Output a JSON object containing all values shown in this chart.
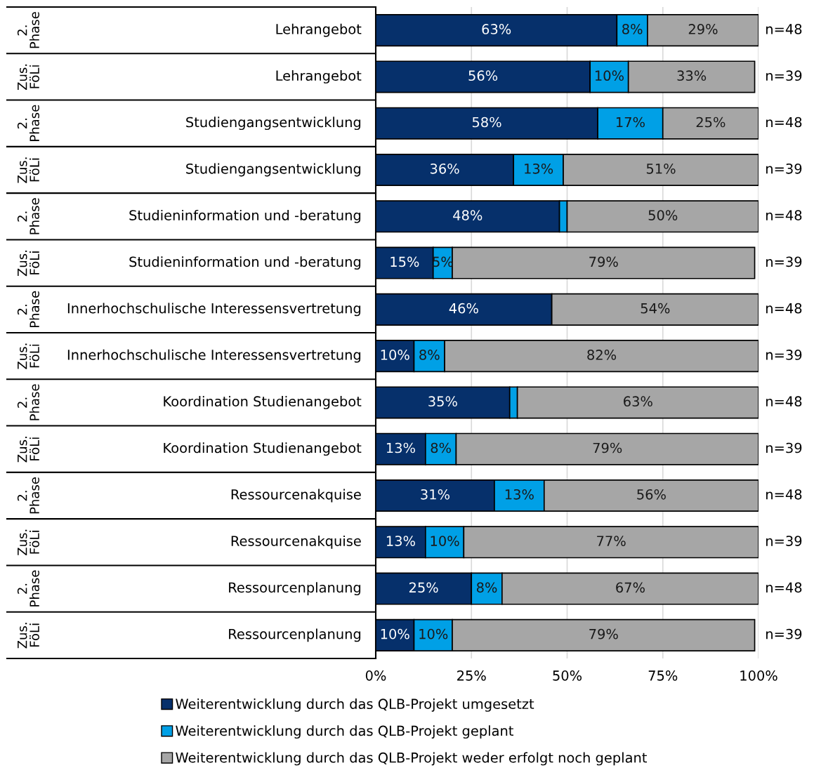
{
  "chart_data": {
    "type": "bar",
    "orientation": "horizontal",
    "stacked": true,
    "categories": [
      "Lehrangebot",
      "Lehrangebot",
      "Studiengangsentwicklung",
      "Studiengangsentwicklung",
      "Studieninformation und -beratung",
      "Studieninformation und -beratung",
      "Innerhochschulische Interessensvertretung",
      "Innerhochschulische Interessensvertretung",
      "Koordination Studienangebot",
      "Koordination Studienangebot",
      "Ressourcenakquise",
      "Ressourcenakquise",
      "Ressourcenplanung",
      "Ressourcenplanung"
    ],
    "series": [
      {
        "name": "Weiterentwicklung durch das QLB-Projekt umgesetzt",
        "color": "#06306b",
        "values": [
          63,
          56,
          58,
          36,
          48,
          15,
          46,
          10,
          35,
          13,
          31,
          13,
          25,
          10
        ],
        "value_labels": [
          "63%",
          "56%",
          "58%",
          "36%",
          "48%",
          "15%",
          "46%",
          "10%",
          "35%",
          "13%",
          "31%",
          "13%",
          "25%",
          "10%"
        ]
      },
      {
        "name": "Weiterentwicklung durch das QLB-Projekt geplant",
        "color": "#00a0e6",
        "values": [
          8,
          10,
          17,
          13,
          2,
          5,
          0,
          8,
          2,
          8,
          13,
          10,
          8,
          10
        ],
        "value_labels": [
          "8%",
          "10%",
          "17%",
          "13%",
          null,
          "5%",
          null,
          "8%",
          null,
          "8%",
          "13%",
          "10%",
          "8%",
          "10%"
        ]
      },
      {
        "name": "Weiterentwicklung durch das QLB-Projekt weder erfolgt noch geplant",
        "color": "#a6a6a6",
        "values": [
          29,
          33,
          25,
          51,
          50,
          79,
          54,
          82,
          63,
          79,
          56,
          77,
          67,
          79
        ],
        "value_labels": [
          "29%",
          "33%",
          "25%",
          "51%",
          "50%",
          "79%",
          "54%",
          "82%",
          "63%",
          "79%",
          "56%",
          "77%",
          "67%",
          "79%"
        ]
      }
    ],
    "xlim": [
      0,
      100
    ],
    "xticks": [
      {
        "value": 0,
        "label": "0%"
      },
      {
        "value": 25,
        "label": "25%"
      },
      {
        "value": 50,
        "label": "50%"
      },
      {
        "value": 75,
        "label": "75%"
      },
      {
        "value": 100,
        "label": "100%"
      }
    ],
    "grid": "x",
    "legend": "bottom",
    "annotations": [
      "2.\nPhase",
      "Zus.\nFöLi",
      "2.\nPhase",
      "Zus.\nFöLi",
      "2.\nPhase",
      "Zus.\nFöLi",
      "2.\nPhase",
      "Zus.\nFöLi",
      "2.\nPhase",
      "Zus.\nFöLi",
      "2.\nPhase",
      "Zus.\nFöLi",
      "2.\nPhase",
      "Zus.\nFöLi",
      "n=48",
      "n=39",
      "n=48",
      "n=39",
      "n=48",
      "n=39",
      "n=48",
      "n=39",
      "n=48",
      "n=39",
      "n=48",
      "n=39",
      "n=48",
      "n=39"
    ]
  }
}
